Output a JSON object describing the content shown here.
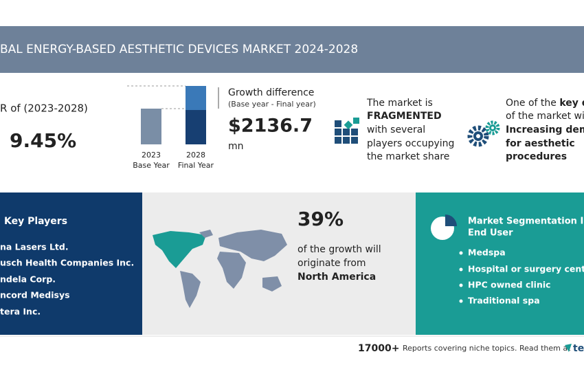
{
  "header": {
    "title": "BAL ENERGY-BASED AESTHETIC DEVICES MARKET 2024-2028"
  },
  "cagr": {
    "label": "R of (2023-2028)",
    "value": "9.45%"
  },
  "growth": {
    "bars": [
      {
        "year": "2023",
        "label": "Base Year"
      },
      {
        "year": "2028",
        "label": "Final Year"
      }
    ],
    "title": "Growth difference",
    "subtitle": "(Base year - Final year)",
    "value": "$2136.7",
    "unit": "mn"
  },
  "market": {
    "lines": [
      "The market is",
      "FRAGMENTED",
      "with several",
      "players occupying",
      "the market share"
    ]
  },
  "driver": {
    "intro": "One of the ",
    "intro_bold": "key d",
    "lines": [
      "of the market wil",
      "Increasing dema",
      "for aesthetic",
      "procedures"
    ]
  },
  "key_players": {
    "title": "Key Players",
    "items": [
      "na Lasers Ltd.",
      "usch Health Companies Inc.",
      "ndela Corp.",
      "ncord Medisys",
      "tera Inc."
    ]
  },
  "region": {
    "share": "39%",
    "lines": [
      "of the growth will",
      "originate from",
      "North America"
    ]
  },
  "segmentation": {
    "title": [
      "Market Segmentation I",
      "End User"
    ],
    "items": [
      "Medspa",
      "Hospital or surgery center",
      "HPC owned clinic",
      "Traditional spa"
    ]
  },
  "footer": {
    "count": "17000+",
    "text": "Reports covering niche topics. Read them at",
    "logo": "te"
  }
}
